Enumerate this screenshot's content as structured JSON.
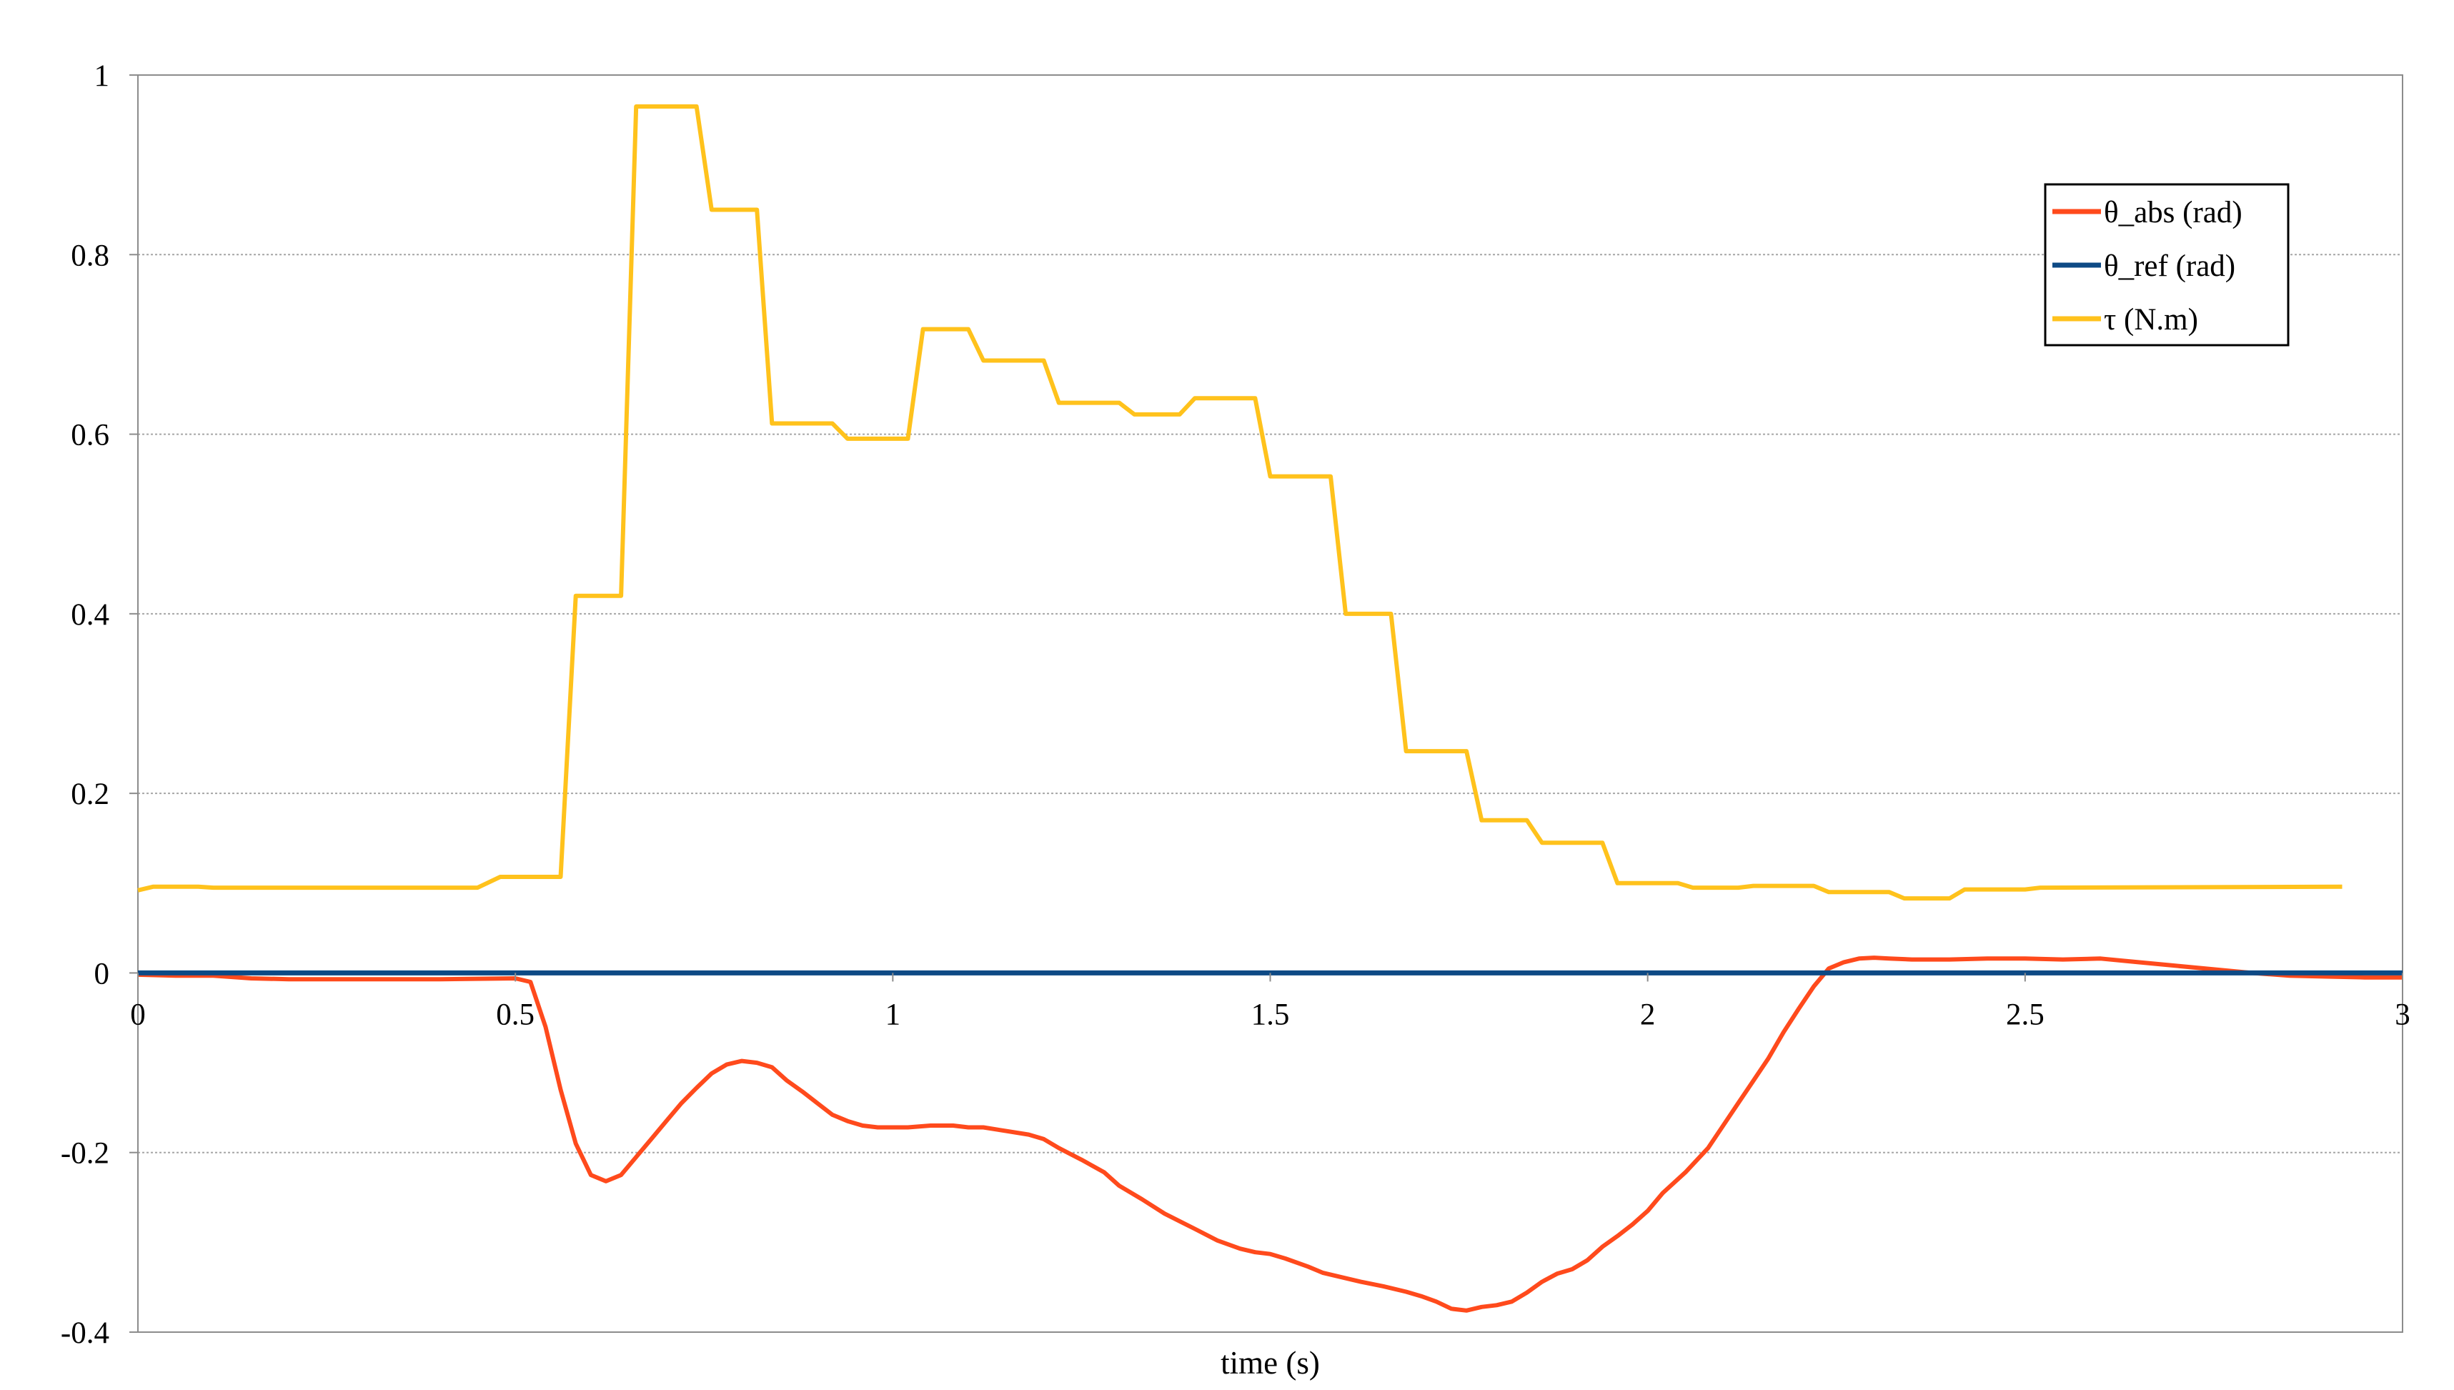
{
  "chart_data": {
    "type": "line",
    "title": "",
    "xlabel": "time (s)",
    "ylabel": "",
    "xlim": [
      0,
      3
    ],
    "ylim": [
      -0.4,
      1
    ],
    "x_ticks": [
      0,
      0.5,
      1,
      1.5,
      2,
      2.5,
      3
    ],
    "x_tick_labels": [
      "0",
      "0.5",
      "1",
      "1.5",
      "2",
      "2.5",
      "3"
    ],
    "y_ticks": [
      -0.4,
      -0.2,
      0,
      0.2,
      0.4,
      0.6,
      0.8,
      1
    ],
    "y_tick_labels": [
      "-0.4",
      "-0.2",
      "0",
      "0.2",
      "0.4",
      "0.6",
      "0.8",
      "1"
    ],
    "grid": "horizontal",
    "legend_position": "top-right",
    "series": [
      {
        "name": "θ_abs (rad)",
        "color": "#FF4A1C",
        "x": [
          0,
          0.05,
          0.1,
          0.15,
          0.2,
          0.3,
          0.4,
          0.5,
          0.52,
          0.54,
          0.56,
          0.58,
          0.6,
          0.62,
          0.64,
          0.66,
          0.68,
          0.7,
          0.72,
          0.74,
          0.76,
          0.78,
          0.8,
          0.82,
          0.84,
          0.86,
          0.88,
          0.9,
          0.92,
          0.94,
          0.96,
          0.98,
          1.0,
          1.02,
          1.05,
          1.08,
          1.1,
          1.12,
          1.15,
          1.18,
          1.2,
          1.22,
          1.25,
          1.28,
          1.3,
          1.33,
          1.36,
          1.4,
          1.43,
          1.46,
          1.48,
          1.5,
          1.52,
          1.55,
          1.57,
          1.6,
          1.62,
          1.65,
          1.68,
          1.7,
          1.72,
          1.74,
          1.76,
          1.78,
          1.8,
          1.82,
          1.84,
          1.86,
          1.88,
          1.9,
          1.92,
          1.94,
          1.96,
          1.98,
          2.0,
          2.02,
          2.05,
          2.08,
          2.1,
          2.12,
          2.14,
          2.16,
          2.18,
          2.2,
          2.22,
          2.24,
          2.26,
          2.28,
          2.3,
          2.32,
          2.35,
          2.4,
          2.45,
          2.5,
          2.55,
          2.6,
          2.65,
          2.7,
          2.75,
          2.8,
          2.85,
          2.9,
          2.95,
          3.0
        ],
        "y": [
          -0.002,
          -0.003,
          -0.003,
          -0.006,
          -0.007,
          -0.007,
          -0.007,
          -0.006,
          -0.01,
          -0.06,
          -0.13,
          -0.19,
          -0.225,
          -0.232,
          -0.225,
          -0.205,
          -0.185,
          -0.165,
          -0.145,
          -0.128,
          -0.112,
          -0.102,
          -0.098,
          -0.1,
          -0.105,
          -0.12,
          -0.132,
          -0.145,
          -0.158,
          -0.165,
          -0.17,
          -0.172,
          -0.172,
          -0.172,
          -0.17,
          -0.17,
          -0.172,
          -0.172,
          -0.176,
          -0.18,
          -0.185,
          -0.195,
          -0.208,
          -0.222,
          -0.237,
          -0.252,
          -0.268,
          -0.285,
          -0.298,
          -0.307,
          -0.311,
          -0.313,
          -0.318,
          -0.327,
          -0.334,
          -0.34,
          -0.344,
          -0.349,
          -0.355,
          -0.36,
          -0.366,
          -0.374,
          -0.376,
          -0.372,
          -0.37,
          -0.366,
          -0.356,
          -0.344,
          -0.335,
          -0.33,
          -0.32,
          -0.305,
          -0.293,
          -0.28,
          -0.265,
          -0.245,
          -0.222,
          -0.195,
          -0.17,
          -0.145,
          -0.12,
          -0.095,
          -0.066,
          -0.04,
          -0.015,
          0.005,
          0.012,
          0.016,
          0.017,
          0.016,
          0.015,
          0.015,
          0.016,
          0.016,
          0.015,
          0.016,
          0.012,
          0.008,
          0.004,
          0.0,
          -0.003,
          -0.004,
          -0.005,
          -0.005
        ]
      },
      {
        "name": "θ_ref (rad)",
        "color": "#0E4A85",
        "x": [
          0,
          3
        ],
        "y": [
          0,
          0
        ]
      },
      {
        "name": "τ (N.m)",
        "color": "#FFC21C",
        "x": [
          0,
          0.02,
          0.08,
          0.1,
          0.45,
          0.48,
          0.56,
          0.58,
          0.64,
          0.66,
          0.74,
          0.76,
          0.82,
          0.84,
          0.92,
          0.94,
          1.02,
          1.04,
          1.1,
          1.12,
          1.2,
          1.22,
          1.3,
          1.32,
          1.38,
          1.4,
          1.48,
          1.5,
          1.58,
          1.6,
          1.66,
          1.68,
          1.76,
          1.78,
          1.84,
          1.86,
          1.94,
          1.96,
          2.04,
          2.06,
          2.12,
          2.14,
          2.22,
          2.24,
          2.32,
          2.34,
          2.4,
          2.42,
          2.5,
          2.52,
          2.92
        ],
        "y": [
          0.092,
          0.096,
          0.096,
          0.095,
          0.095,
          0.107,
          0.107,
          0.42,
          0.42,
          0.965,
          0.965,
          0.85,
          0.85,
          0.612,
          0.612,
          0.595,
          0.595,
          0.717,
          0.717,
          0.682,
          0.682,
          0.635,
          0.635,
          0.622,
          0.622,
          0.64,
          0.64,
          0.553,
          0.553,
          0.4,
          0.4,
          0.247,
          0.247,
          0.17,
          0.17,
          0.145,
          0.145,
          0.1,
          0.1,
          0.095,
          0.095,
          0.097,
          0.097,
          0.09,
          0.09,
          0.083,
          0.083,
          0.093,
          0.093,
          0.095,
          0.096
        ]
      }
    ]
  }
}
